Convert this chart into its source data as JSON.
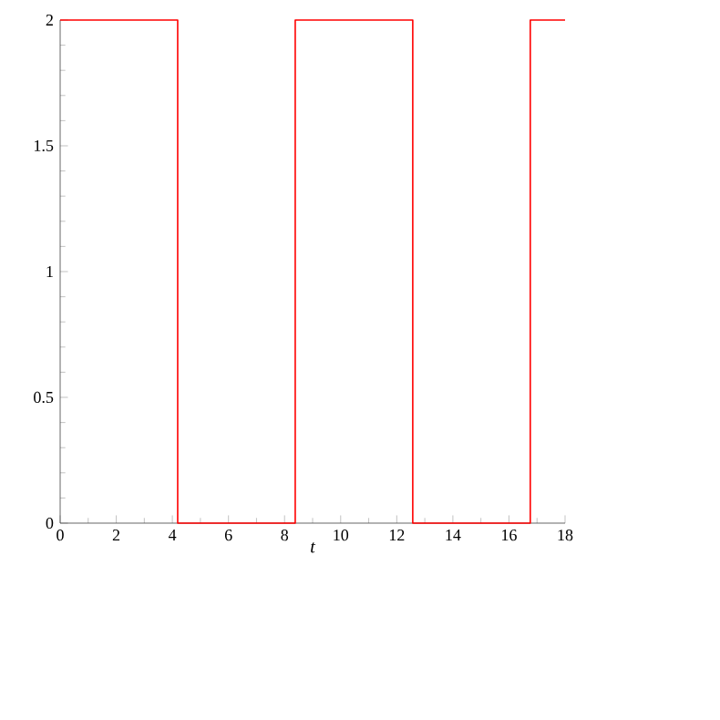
{
  "chart_data": {
    "type": "step",
    "xlabel": "t",
    "x": [
      0,
      4.19,
      8.38,
      12.57,
      16.76,
      18
    ],
    "series": [
      {
        "color": "#ff0000",
        "values": [
          2,
          0,
          2,
          0,
          2,
          2
        ]
      }
    ],
    "xlim": [
      0,
      18
    ],
    "ylim": [
      0,
      2
    ],
    "xticks": [
      0,
      2,
      4,
      6,
      8,
      10,
      12,
      14,
      16,
      18
    ],
    "yticks": [
      0,
      0.5,
      1,
      1.5,
      2
    ],
    "grid": false
  }
}
